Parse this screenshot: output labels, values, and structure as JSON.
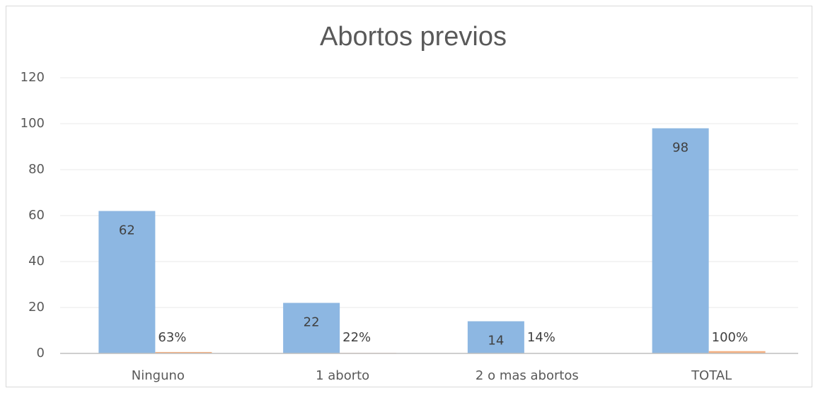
{
  "chart_data": {
    "type": "bar",
    "title": "Abortos previos",
    "categories": [
      "Ninguno",
      "1 aborto",
      "2 o mas abortos",
      "TOTAL"
    ],
    "series": [
      {
        "color": "#8db7e2",
        "values": [
          62,
          22,
          14,
          98
        ]
      },
      {
        "color": "#f4b183",
        "values": [
          0.63,
          0.22,
          0.14,
          1
        ],
        "value_labels": [
          "63%",
          "22%",
          "14%",
          "100%"
        ]
      }
    ],
    "ylim": [
      0,
      120
    ],
    "yticks": [
      0,
      20,
      40,
      60,
      80,
      100,
      120
    ],
    "grid": true
  }
}
